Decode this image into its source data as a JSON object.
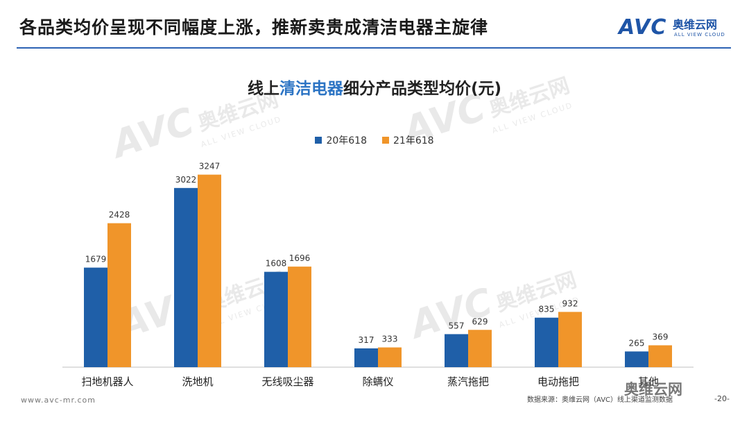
{
  "slide": {
    "title": "各品类均价呈现不同幅度上涨，推新卖贵成清洁电器主旋律",
    "url": "www.avc-mr.com",
    "source": "数据来源：奥维云网（AVC）线上渠道监测数据",
    "page": "-20-",
    "wechat": "奥维云网"
  },
  "logo": {
    "mark": "AVC",
    "cn": "奥维云网",
    "en": "ALL VIEW CLOUD"
  },
  "watermarks": [
    {
      "mark": "AVC",
      "cn": "奥维云网",
      "en": "ALL VIEW CLOUD"
    },
    {
      "mark": "AVC",
      "cn": "奥维云网",
      "en": "ALL VIEW CLOUD"
    },
    {
      "mark": "AVC",
      "cn": "奥维云网",
      "en": "ALL VIEW CLOUD"
    },
    {
      "mark": "AVC",
      "cn": "奥维云网",
      "en": "ALL VIEW CLOUD"
    }
  ],
  "chart_data": {
    "type": "bar",
    "title_prefix": "线上",
    "title_highlight": "清洁电器",
    "title_suffix": "细分产品类型均价(元)",
    "categories": [
      "扫地机器人",
      "洗地机",
      "无线吸尘器",
      "除螨仪",
      "蒸汽拖把",
      "电动拖把",
      "其他"
    ],
    "series": [
      {
        "name": "20年618",
        "color": "#1f5fa8",
        "values": [
          1679,
          3022,
          1608,
          317,
          557,
          835,
          265
        ]
      },
      {
        "name": "21年618",
        "color": "#f0952a",
        "values": [
          2428,
          3247,
          1696,
          333,
          629,
          932,
          369
        ]
      }
    ],
    "ylim": [
      0,
      3500
    ],
    "grid": false,
    "legend": "top-center"
  }
}
